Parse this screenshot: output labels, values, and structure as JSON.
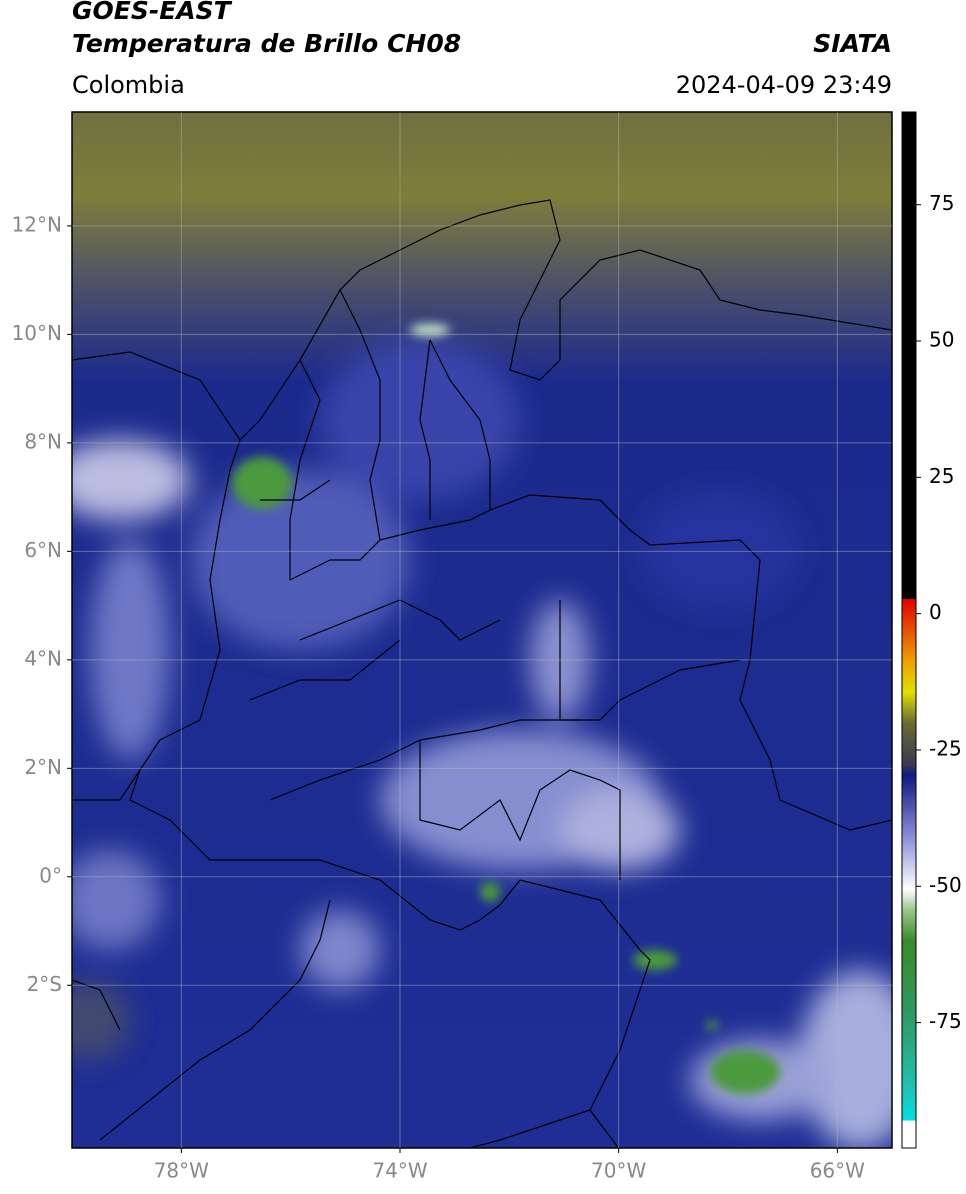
{
  "header": {
    "title": "GOES-EAST",
    "subtitle": "Temperatura de Brillo CH08",
    "region": "Colombia",
    "source": "SIATA",
    "timestamp": "2024-04-09 23:49"
  },
  "map": {
    "xlim": [
      -80,
      -65
    ],
    "ylim": [
      -5,
      14.1
    ],
    "xticks": [
      {
        "value": -78,
        "label": "78°W"
      },
      {
        "value": -74,
        "label": "74°W"
      },
      {
        "value": -70,
        "label": "70°W"
      },
      {
        "value": -66,
        "label": "66°W"
      }
    ],
    "yticks": [
      {
        "value": -2,
        "label": "2°S"
      },
      {
        "value": 0,
        "label": "0°"
      },
      {
        "value": 2,
        "label": "2°N"
      },
      {
        "value": 4,
        "label": "4°N"
      },
      {
        "value": 6,
        "label": "6°N"
      },
      {
        "value": 8,
        "label": "8°N"
      },
      {
        "value": 10,
        "label": "10°N"
      },
      {
        "value": 12,
        "label": "12°N"
      }
    ],
    "grid": true
  },
  "colorbar": {
    "lim": [
      -98,
      92
    ],
    "ticks": [
      -75,
      -50,
      -25,
      0,
      25,
      50,
      75
    ]
  }
}
